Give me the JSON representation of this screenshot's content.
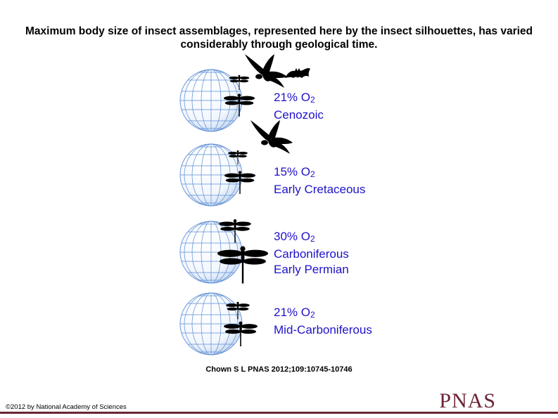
{
  "title": "Maximum body size of insect assemblages, represented here by the insect silhouettes, has varied considerably through geological time.",
  "colors": {
    "label": "#1f12c9",
    "globe_line": "#5b8ed6",
    "silhouette": "#000000",
    "brand": "#6b2335"
  },
  "eras": [
    {
      "o2_value": "21% O",
      "o2_sub": "2",
      "line1": "Cenozoic",
      "line2": ""
    },
    {
      "o2_value": "15% O",
      "o2_sub": "2",
      "line1": "Early Cretaceous",
      "line2": ""
    },
    {
      "o2_value": "30% O",
      "o2_sub": "2",
      "line1": "Carboniferous",
      "line2": "Early Permian"
    },
    {
      "o2_value": "21% O",
      "o2_sub": "2",
      "line1": "Mid-Carboniferous",
      "line2": ""
    }
  ],
  "citation": "Chown S L PNAS 2012;109:10745-10746",
  "footer": {
    "copyright": "©2012 by National Academy of Sciences",
    "logo": "PNAS"
  }
}
